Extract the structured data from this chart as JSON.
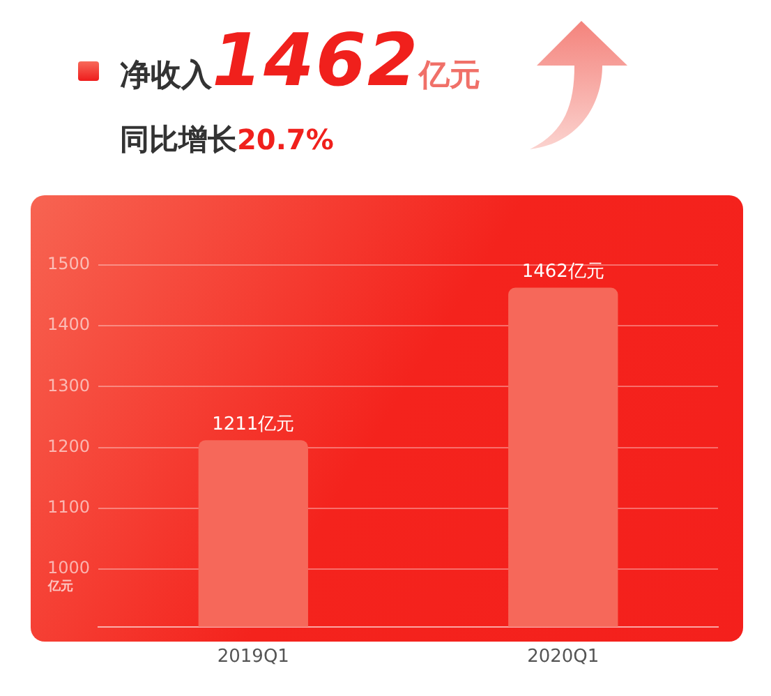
{
  "chart_data": {
    "type": "bar",
    "title": "净收入1462亿元",
    "subtitle": "同比增长20.7%",
    "ylabel": "亿元",
    "categories": [
      "2019Q1",
      "2020Q1"
    ],
    "values": [
      1211,
      1462
    ],
    "color": "#f6685a",
    "value_labels": [
      "1211亿元",
      "1462亿元"
    ],
    "ylim": [
      905,
      1500
    ],
    "yticks": [
      1000,
      1100,
      1200,
      1300,
      1400,
      1500
    ],
    "grid": "y"
  }
}
